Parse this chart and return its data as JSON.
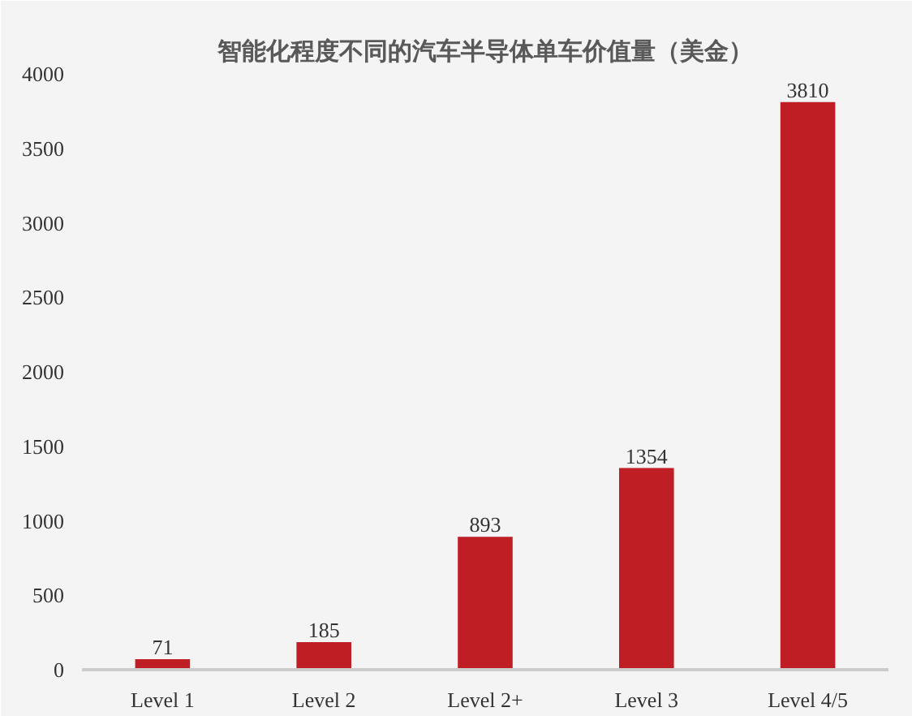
{
  "chart_data": {
    "type": "bar",
    "title": "智能化程度不同的汽车半导体单车价值量（美金）",
    "categories": [
      "Level 1",
      "Level 2",
      "Level 2+",
      "Level 3",
      "Level 4/5"
    ],
    "values": [
      71,
      185,
      893,
      1354,
      3810
    ],
    "color": "#be1e24",
    "ylim": [
      0,
      4000
    ],
    "yticks": [
      0,
      500,
      1000,
      1500,
      2000,
      2500,
      3000,
      3500,
      4000
    ],
    "data_labels": true,
    "grid": false
  }
}
